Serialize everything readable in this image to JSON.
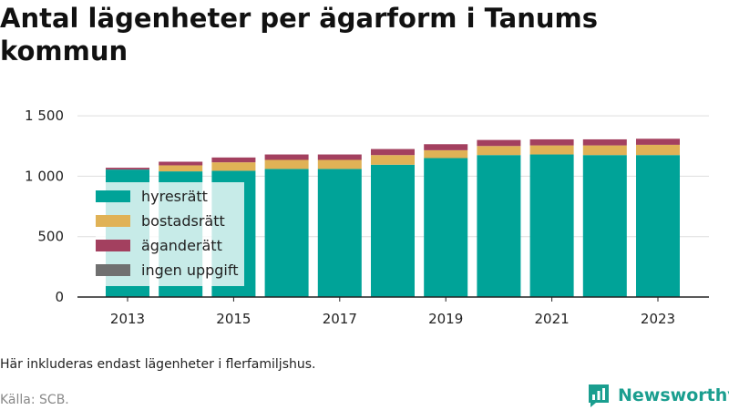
{
  "title": "Antal lägenheter per ägarform i Tanums kommun",
  "note": "Här inkluderas endast lägenheter i flerfamiljshus.",
  "source": "Källa: SCB.",
  "brand": "Newsworthy",
  "colors": {
    "hyresratt": "#00a398",
    "bostadsratt": "#e0b256",
    "aganderatt": "#a3405f",
    "ingen_uppgift": "#707070"
  },
  "legend": [
    {
      "label": "hyresrätt",
      "color_key": "hyresratt"
    },
    {
      "label": "bostadsrätt",
      "color_key": "bostadsratt"
    },
    {
      "label": "äganderätt",
      "color_key": "aganderatt"
    },
    {
      "label": "ingen uppgift",
      "color_key": "ingen_uppgift"
    }
  ],
  "chart_data": {
    "type": "bar",
    "stacked": true,
    "categories": [
      "2013",
      "2014",
      "2015",
      "2016",
      "2017",
      "2018",
      "2019",
      "2020",
      "2021",
      "2022",
      "2023"
    ],
    "x_tick_labels": [
      "2013",
      "2015",
      "2017",
      "2019",
      "2021",
      "2023"
    ],
    "y_ticks": [
      0,
      500,
      1000,
      1500
    ],
    "y_tick_labels": [
      "0",
      "500",
      "1 000",
      "1 500"
    ],
    "ylim": [
      0,
      1550
    ],
    "grid": true,
    "legend_position": "top-left (inside plot)",
    "series": [
      {
        "name": "hyresrätt",
        "color_key": "hyresratt",
        "values": [
          1055,
          1040,
          1045,
          1060,
          1060,
          1095,
          1150,
          1175,
          1180,
          1175,
          1175
        ]
      },
      {
        "name": "bostadsrätt",
        "color_key": "bostadsratt",
        "values": [
          0,
          50,
          70,
          75,
          75,
          80,
          65,
          75,
          75,
          80,
          85
        ]
      },
      {
        "name": "äganderätt",
        "color_key": "aganderatt",
        "values": [
          15,
          30,
          40,
          45,
          45,
          50,
          50,
          50,
          50,
          50,
          50
        ]
      },
      {
        "name": "ingen uppgift",
        "color_key": "ingen_uppgift",
        "values": [
          0,
          0,
          0,
          0,
          0,
          0,
          0,
          0,
          0,
          0,
          0
        ]
      }
    ]
  }
}
